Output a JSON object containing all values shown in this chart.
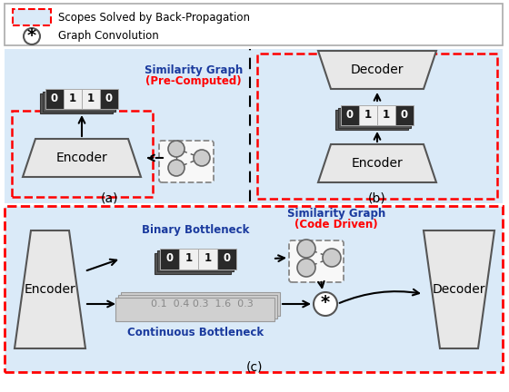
{
  "bg_color": "#ffffff",
  "light_blue": "#daeaf8",
  "enc_color": "#e8e8e8",
  "graph_node_color": "#cccccc",
  "binary_values": [
    "0",
    "1",
    "1",
    "0"
  ],
  "continuous_values": "0.1  0.4 0.3  1.6  0.3",
  "label_a": "(a)",
  "label_b": "(b)",
  "label_c": "(c)",
  "sim_graph_title": "Similarity Graph",
  "sim_graph_pre": "(Pre-Computed)",
  "sim_graph_code": "(Code Driven)",
  "binary_label": "Binary Bottleneck",
  "continuous_label": "Continuous Bottleneck",
  "legend_text1": "Scopes Solved by Back-Propagation",
  "legend_text2": "Graph Convolution"
}
